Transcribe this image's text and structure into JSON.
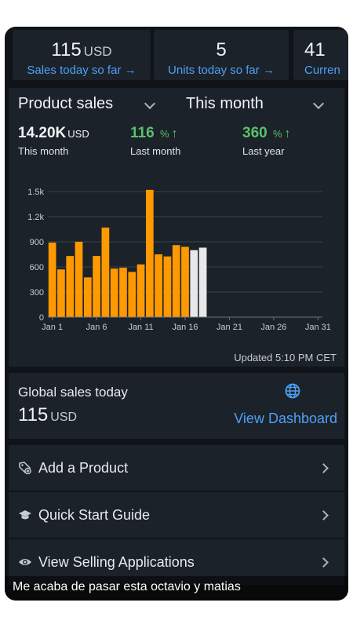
{
  "top_stats": [
    {
      "value": "115",
      "unit": "USD",
      "link": "Sales today so far"
    },
    {
      "value": "5",
      "unit": "",
      "link": "Units today so far"
    },
    {
      "value": "41",
      "unit": "",
      "link": "Curren"
    }
  ],
  "sales_panel": {
    "product_dropdown": "Product sales",
    "period_dropdown": "This month",
    "metrics": [
      {
        "value": "14.20K",
        "unit": "USD",
        "trend": "",
        "label": "This month"
      },
      {
        "value": "116",
        "unit": "%",
        "trend": "↑",
        "label": "Last month"
      },
      {
        "value": "360",
        "unit": "%",
        "trend": "↑",
        "label": "Last year"
      }
    ],
    "updated": "Updated 5:10 PM CET"
  },
  "chart_data": {
    "type": "bar",
    "title": "",
    "xlabel": "",
    "ylabel": "",
    "ylim": [
      0,
      1500
    ],
    "yticks": [
      0,
      300,
      600,
      900,
      1200,
      1500
    ],
    "ytick_labels": [
      "0",
      "300",
      "600",
      "900",
      "1.2k",
      "1.5k"
    ],
    "xticks": [
      1,
      6,
      11,
      16,
      21,
      26,
      31
    ],
    "xtick_labels": [
      "Jan 1",
      "Jan 6",
      "Jan 11",
      "Jan 16",
      "Jan 21",
      "Jan 26",
      "Jan 31"
    ],
    "days": [
      1,
      2,
      3,
      4,
      5,
      6,
      7,
      8,
      9,
      10,
      11,
      12,
      13,
      14,
      15,
      16,
      17,
      18
    ],
    "values": [
      890,
      570,
      730,
      900,
      475,
      730,
      1070,
      580,
      590,
      540,
      630,
      1520,
      750,
      725,
      860,
      840,
      800,
      830
    ],
    "estimated_days": [
      17,
      18
    ],
    "grid": true,
    "colors": {
      "actual": "#ff9900",
      "estimated": "#e8e8e8",
      "grid": "#3a424b"
    }
  },
  "global_sales": {
    "title": "Global sales today",
    "value": "115",
    "unit": "USD",
    "link": "View Dashboard",
    "icon": "globe-icon"
  },
  "menu": [
    {
      "label": "Add a Product",
      "icon": "tag-add-icon"
    },
    {
      "label": "Quick Start Guide",
      "icon": "graduation-cap-icon"
    },
    {
      "label": "View Selling Applications",
      "icon": "eye-icon"
    }
  ],
  "caption": "Me acaba de pasar esta octavio y matias"
}
